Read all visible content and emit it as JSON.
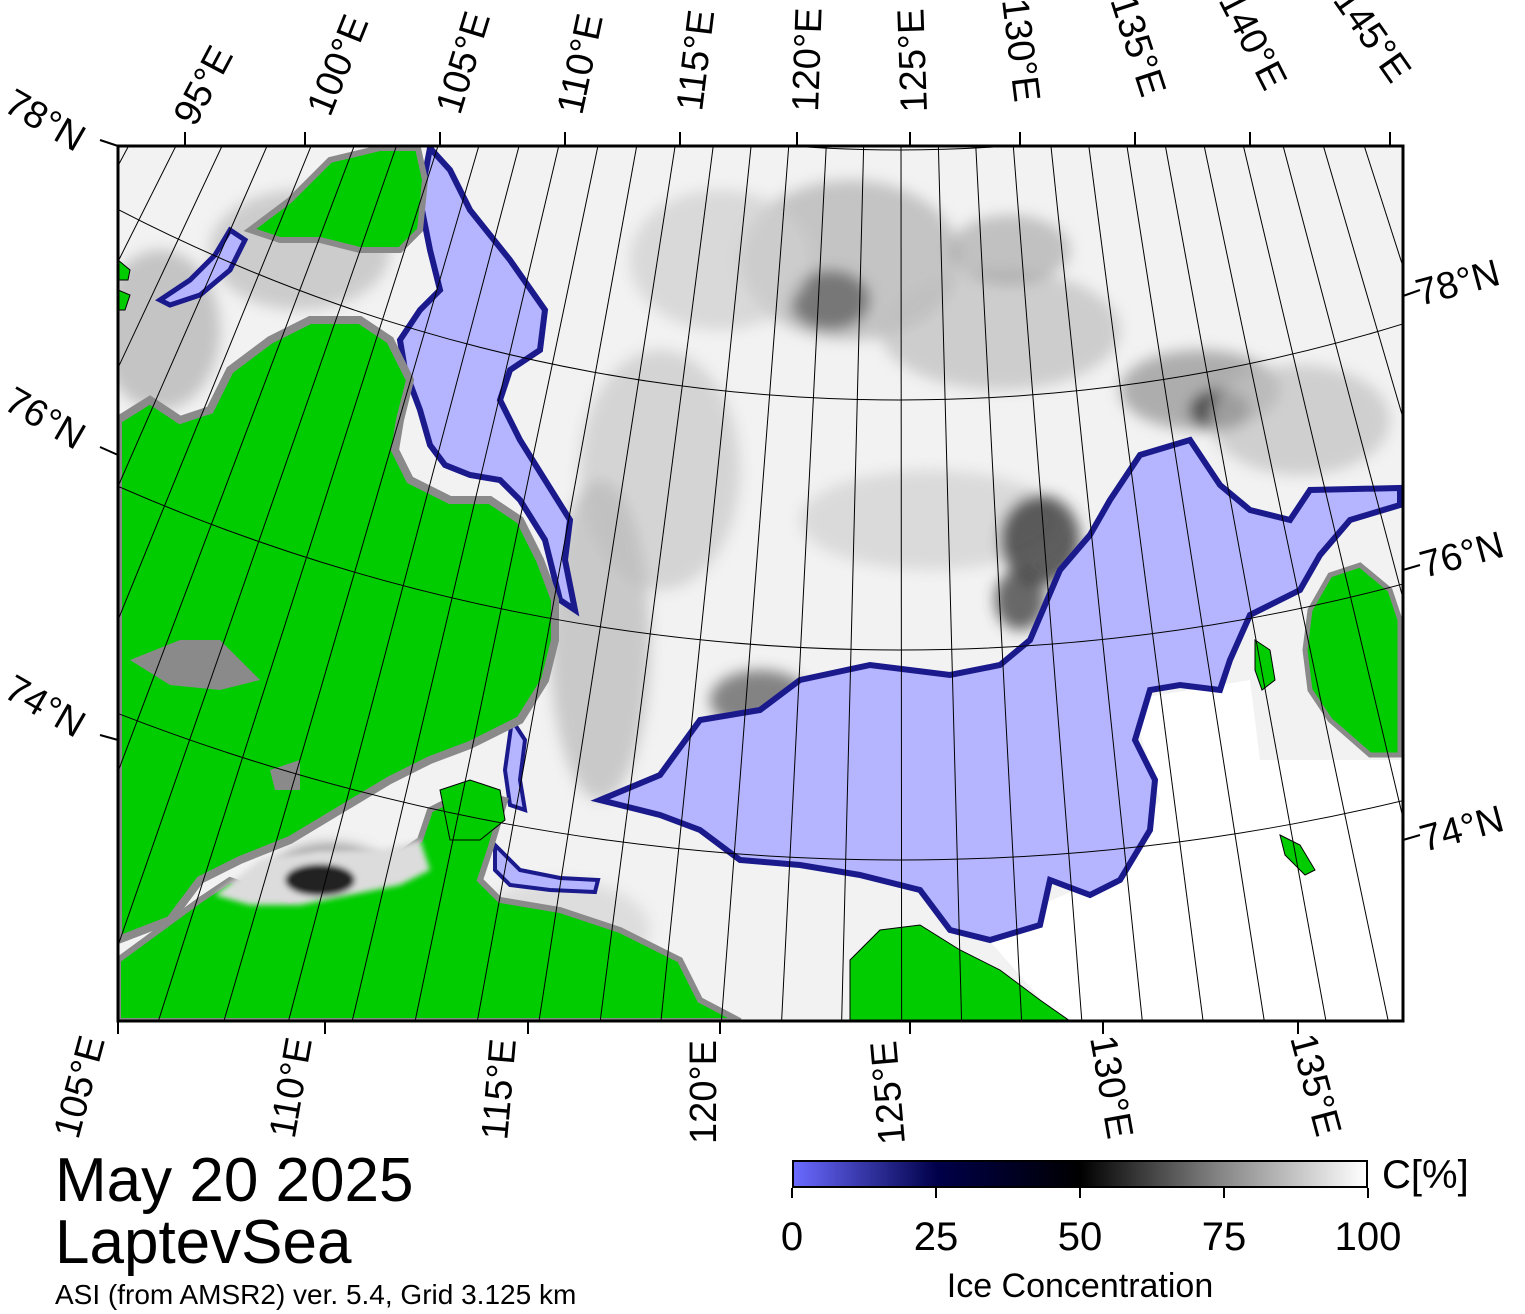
{
  "map": {
    "title_date": "May 20 2025",
    "region": "LaptevSea",
    "source": "ASI (from AMSR2) ver. 5.4,  Grid 3.125 km",
    "colors": {
      "land": "#00cc00",
      "coast_fringe": "#8a8a8a",
      "open_water": "#b4b4ff",
      "water_edge": "#1a1a8c",
      "ice_light": "#f2f2f2",
      "ice_mid": "#c8c8c8",
      "ice_dark": "#3c3c3c",
      "grid_line": "#000000"
    },
    "lon_labels_top": [
      "95°E",
      "100°E",
      "105°E",
      "110°E",
      "115°E",
      "120°E",
      "125°E",
      "130°E",
      "135°E",
      "140°E",
      "145°E"
    ],
    "lon_labels_bottom": [
      "105°E",
      "110°E",
      "115°E",
      "120°E",
      "125°E",
      "130°E",
      "135°E"
    ],
    "lat_labels_left": [
      "78°N",
      "76°N",
      "74°N"
    ],
    "lat_labels_right": [
      "78°N",
      "76°N",
      "74°N"
    ]
  },
  "colorbar": {
    "ticks": [
      "0",
      "25",
      "50",
      "75",
      "100"
    ],
    "unit": "C[%]",
    "title": "Ice Concentration",
    "stops": [
      "#6a6aff",
      "#00004a",
      "#000000",
      "#888888",
      "#ffffff"
    ]
  }
}
